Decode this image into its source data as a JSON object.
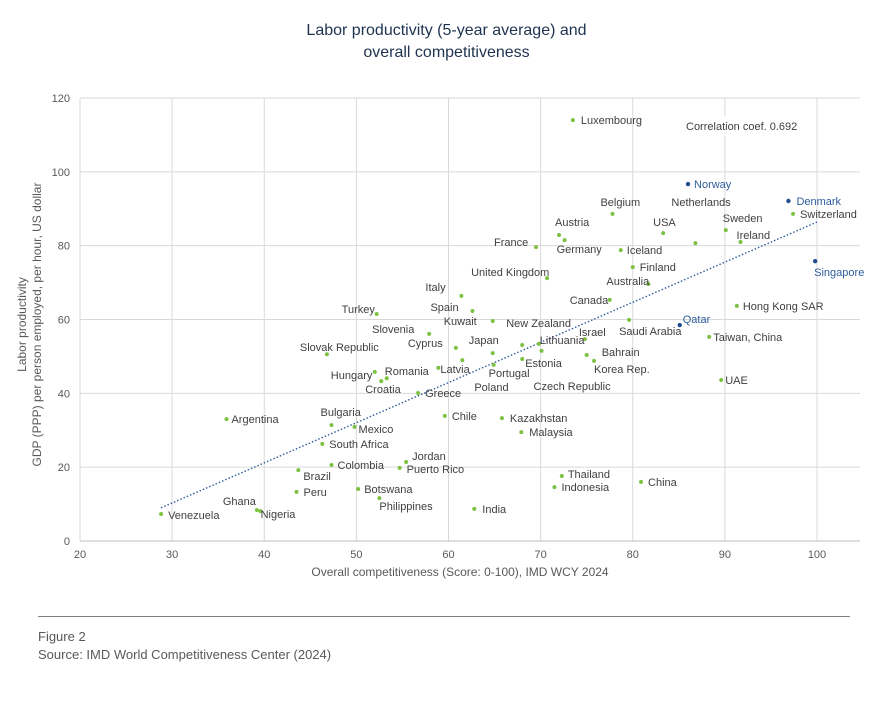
{
  "chart_data": {
    "type": "scatter",
    "title": "Labor productivity (5-year average) and overall competitiveness",
    "title_lines": [
      "Labor productivity (5-year average) and",
      "overall competitiveness"
    ],
    "xlabel": "Overall competitiveness (Score: 0-100), IMD WCY 2024",
    "ylabel_lines": [
      "Labor  productivity",
      "GDP (PPP) per person employed, per hour, US dollar"
    ],
    "xlim": [
      20,
      105
    ],
    "ylim": [
      0,
      120
    ],
    "xticks": [
      20,
      30,
      40,
      50,
      60,
      70,
      80,
      90,
      100
    ],
    "yticks": [
      0,
      20,
      40,
      60,
      80,
      100,
      120
    ],
    "grid": true,
    "annotation": "Correlation coef. 0.692",
    "trendline": {
      "style": "dotted",
      "from": [
        28.8,
        9.0
      ],
      "to": [
        100,
        86.4
      ]
    },
    "colors": {
      "default": "#7dc142",
      "highlight": "#1f4e8c",
      "highlight_label": "#2f5d9c",
      "trend": "#2f5d9c"
    },
    "points": [
      {
        "name": "Luxembourg",
        "x": 73.5,
        "y": 114.0
      },
      {
        "name": "Norway",
        "x": 86.0,
        "y": 96.7,
        "highlight": true
      },
      {
        "name": "Denmark",
        "x": 96.9,
        "y": 92.1,
        "highlight": true
      },
      {
        "name": "Switzerland",
        "x": 97.4,
        "y": 88.6
      },
      {
        "name": "Belgium",
        "x": 77.8,
        "y": 88.6
      },
      {
        "name": "Austria",
        "x": 72.0,
        "y": 82.9
      },
      {
        "name": "Germany",
        "x": 72.6,
        "y": 81.5
      },
      {
        "name": "USA",
        "x": 83.3,
        "y": 83.4
      },
      {
        "name": "Netherlands",
        "x": 86.8,
        "y": 80.7
      },
      {
        "name": "Sweden",
        "x": 90.1,
        "y": 84.2
      },
      {
        "name": "Ireland",
        "x": 91.7,
        "y": 81.0
      },
      {
        "name": "France",
        "x": 69.5,
        "y": 79.6
      },
      {
        "name": "Iceland",
        "x": 78.7,
        "y": 78.8
      },
      {
        "name": "Finland",
        "x": 80.0,
        "y": 74.2
      },
      {
        "name": "United Kingdom",
        "x": 70.7,
        "y": 71.2
      },
      {
        "name": "Australia",
        "x": 81.7,
        "y": 69.6
      },
      {
        "name": "Singapore",
        "x": 99.8,
        "y": 75.8,
        "highlight": true
      },
      {
        "name": "Canada",
        "x": 77.5,
        "y": 65.3
      },
      {
        "name": "Hong Kong SAR",
        "x": 91.3,
        "y": 63.7
      },
      {
        "name": "Italy",
        "x": 61.4,
        "y": 66.4
      },
      {
        "name": "Turkey",
        "x": 52.2,
        "y": 61.5
      },
      {
        "name": "Spain",
        "x": 62.6,
        "y": 62.3
      },
      {
        "name": "Kuwait",
        "x": 64.8,
        "y": 59.6
      },
      {
        "name": "Saudi Arabia",
        "x": 79.6,
        "y": 59.9
      },
      {
        "name": "Qatar",
        "x": 85.1,
        "y": 58.5,
        "highlight": true
      },
      {
        "name": "Slovenia",
        "x": 57.9,
        "y": 56.1
      },
      {
        "name": "Taiwan, China",
        "x": 88.3,
        "y": 55.3
      },
      {
        "name": "Israel",
        "x": 74.8,
        "y": 54.7
      },
      {
        "name": "New Zealand",
        "x": 68.0,
        "y": 53.1
      },
      {
        "name": "Lithuania",
        "x": 69.8,
        "y": 53.4
      },
      {
        "name": "Czech Republic",
        "x": 70.1,
        "y": 51.5
      },
      {
        "name": "Cyprus",
        "x": 60.8,
        "y": 52.3
      },
      {
        "name": "Slovak Republic",
        "x": 46.8,
        "y": 50.6
      },
      {
        "name": "Japan",
        "x": 64.8,
        "y": 50.9
      },
      {
        "name": "Bahrain",
        "x": 75.0,
        "y": 50.4
      },
      {
        "name": "Estonia",
        "x": 68.0,
        "y": 49.3
      },
      {
        "name": "Korea Rep.",
        "x": 75.8,
        "y": 48.8
      },
      {
        "name": "Portugal",
        "x": 64.9,
        "y": 47.7
      },
      {
        "name": "Poland",
        "x": 61.5,
        "y": 49.0
      },
      {
        "name": "Latvia",
        "x": 58.9,
        "y": 46.9
      },
      {
        "name": "Romania",
        "x": 53.3,
        "y": 44.1
      },
      {
        "name": "Hungary",
        "x": 52.0,
        "y": 45.8
      },
      {
        "name": "Croatia",
        "x": 52.7,
        "y": 43.3
      },
      {
        "name": "UAE",
        "x": 89.6,
        "y": 43.6
      },
      {
        "name": "Greece",
        "x": 56.7,
        "y": 40.1
      },
      {
        "name": "Argentina",
        "x": 35.9,
        "y": 33.0
      },
      {
        "name": "Bulgaria",
        "x": 47.3,
        "y": 31.4
      },
      {
        "name": "Mexico",
        "x": 49.8,
        "y": 30.9
      },
      {
        "name": "Chile",
        "x": 59.6,
        "y": 33.9
      },
      {
        "name": "Kazakhstan",
        "x": 65.8,
        "y": 33.3
      },
      {
        "name": "Malaysia",
        "x": 67.9,
        "y": 29.5
      },
      {
        "name": "South Africa",
        "x": 46.3,
        "y": 26.3
      },
      {
        "name": "Colombia",
        "x": 47.3,
        "y": 20.6
      },
      {
        "name": "Jordan",
        "x": 55.4,
        "y": 21.4
      },
      {
        "name": "Puerto Rico",
        "x": 54.7,
        "y": 19.8
      },
      {
        "name": "Brazil",
        "x": 43.7,
        "y": 19.2
      },
      {
        "name": "Thailand",
        "x": 72.3,
        "y": 17.6
      },
      {
        "name": "China",
        "x": 80.9,
        "y": 16.0
      },
      {
        "name": "Indonesia",
        "x": 71.5,
        "y": 14.6
      },
      {
        "name": "Botswana",
        "x": 50.2,
        "y": 14.1
      },
      {
        "name": "Peru",
        "x": 43.5,
        "y": 13.3
      },
      {
        "name": "Philippines",
        "x": 52.5,
        "y": 11.6
      },
      {
        "name": "India",
        "x": 62.8,
        "y": 8.7
      },
      {
        "name": "Ghana",
        "x": 39.2,
        "y": 8.4
      },
      {
        "name": "Nigeria",
        "x": 39.6,
        "y": 8.1
      },
      {
        "name": "Venezuela",
        "x": 28.8,
        "y": 7.3
      }
    ]
  },
  "footer": {
    "figure_label": "Figure 2",
    "source": "Source: IMD World Competitiveness Center (2024)"
  }
}
